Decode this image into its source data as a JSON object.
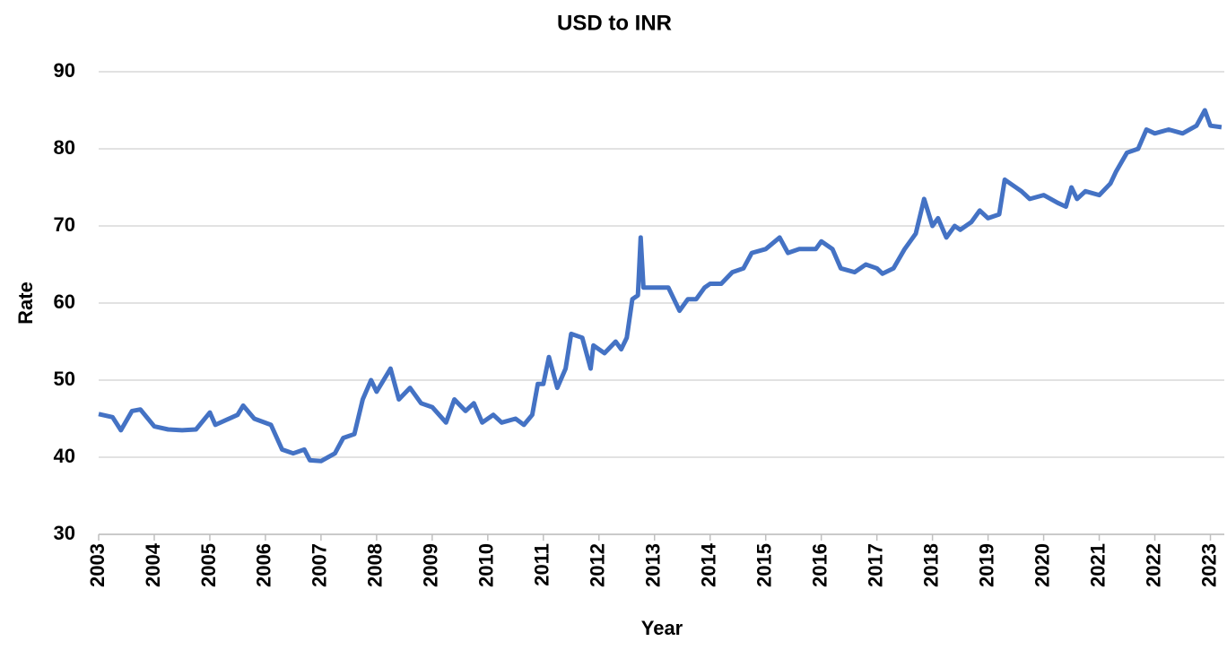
{
  "chart_data": {
    "type": "line",
    "title": "USD to INR",
    "x_label": "Year",
    "y_label": "Rate",
    "color": "#4472c4",
    "grid": true,
    "x": [
      2003.0,
      2003.25,
      2003.4,
      2003.6,
      2003.75,
      2004.0,
      2004.25,
      2004.5,
      2004.75,
      2005.0,
      2005.1,
      2005.5,
      2005.6,
      2005.8,
      2006.1,
      2006.3,
      2006.5,
      2006.7,
      2006.8,
      2007.0,
      2007.25,
      2007.4,
      2007.6,
      2007.75,
      2007.9,
      2008.0,
      2008.25,
      2008.4,
      2008.6,
      2008.8,
      2009.0,
      2009.25,
      2009.4,
      2009.6,
      2009.75,
      2009.9,
      2010.1,
      2010.25,
      2010.5,
      2010.65,
      2010.8,
      2010.9,
      2011.0,
      2011.1,
      2011.25,
      2011.4,
      2011.5,
      2011.7,
      2011.85,
      2011.9,
      2012.1,
      2012.3,
      2012.4,
      2012.5,
      2012.6,
      2012.7,
      2012.75,
      2012.8,
      2013.0,
      2013.25,
      2013.45,
      2013.6,
      2013.75,
      2013.9,
      2014.0,
      2014.2,
      2014.4,
      2014.6,
      2014.75,
      2015.0,
      2015.25,
      2015.4,
      2015.6,
      2015.9,
      2016.0,
      2016.2,
      2016.35,
      2016.6,
      2016.8,
      2017.0,
      2017.1,
      2017.3,
      2017.5,
      2017.7,
      2017.85,
      2018.0,
      2018.1,
      2018.25,
      2018.4,
      2018.5,
      2018.7,
      2018.85,
      2019.0,
      2019.2,
      2019.3,
      2019.5,
      2019.6,
      2019.75,
      2020.0,
      2020.25,
      2020.4,
      2020.5,
      2020.6,
      2020.75,
      2021.0,
      2021.2,
      2021.3,
      2021.5,
      2021.7,
      2021.85,
      2022.0,
      2022.25,
      2022.5,
      2022.75,
      2022.9,
      2023.0,
      2023.2
    ],
    "values": [
      45.6,
      45.2,
      43.5,
      46,
      46.2,
      44,
      43.6,
      43.5,
      43.6,
      45.8,
      44.2,
      45.5,
      46.7,
      45,
      44.2,
      41,
      40.5,
      41,
      39.6,
      39.5,
      40.5,
      42.5,
      43,
      47.5,
      50,
      48.5,
      51.5,
      47.5,
      49,
      47,
      46.5,
      44.5,
      47.5,
      46,
      47,
      44.5,
      45.5,
      44.5,
      45,
      44.2,
      45.5,
      49.5,
      49.5,
      53,
      49,
      51.5,
      56,
      55.5,
      51.5,
      54.5,
      53.5,
      55,
      54,
      55.5,
      60.5,
      61,
      68.5,
      62,
      62,
      62,
      59,
      60.5,
      60.5,
      62,
      62.5,
      62.5,
      64,
      64.5,
      66.5,
      67,
      68.5,
      66.5,
      67,
      67,
      68,
      67,
      64.5,
      64,
      65,
      64.5,
      63.8,
      64.5,
      67,
      69,
      73.5,
      70,
      71,
      68.5,
      70,
      69.5,
      70.5,
      72,
      71,
      71.5,
      76,
      75,
      74.5,
      73.5,
      74,
      73,
      72.5,
      75,
      73.5,
      74.5,
      74,
      75.5,
      77,
      79.5,
      80,
      82.5,
      82,
      82.5,
      82,
      83,
      85,
      83,
      82.8
    ],
    "xlim": [
      2003,
      2023.25
    ],
    "xticks": [
      2003,
      2004,
      2005,
      2006,
      2007,
      2008,
      2009,
      2010,
      2011,
      2012,
      2013,
      2014,
      2015,
      2016,
      2017,
      2018,
      2019,
      2020,
      2021,
      2022,
      2023
    ],
    "ylim": [
      30,
      90
    ],
    "yticks": [
      30,
      40,
      50,
      60,
      70,
      80,
      90
    ]
  }
}
